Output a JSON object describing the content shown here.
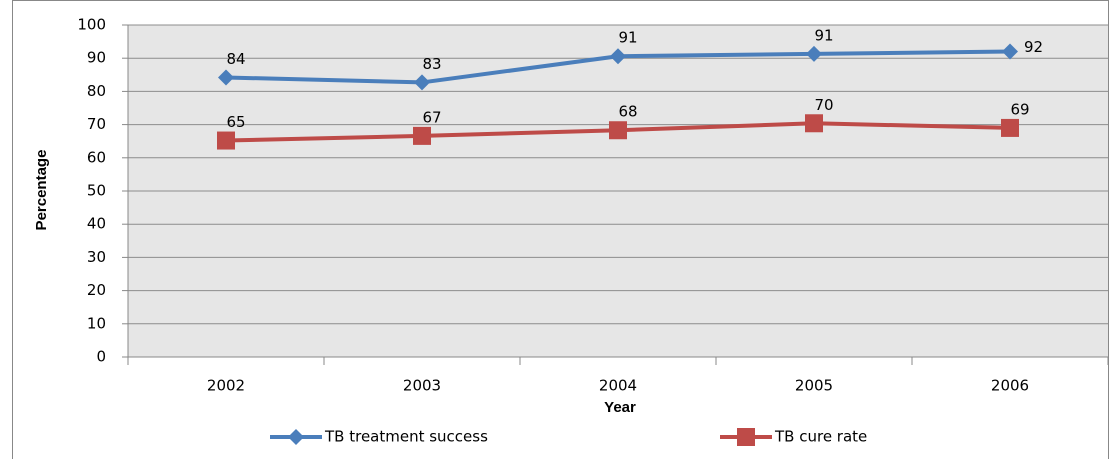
{
  "chart_data": {
    "type": "line",
    "x_label": "Year",
    "y_label": "Percentage",
    "categories": [
      "2002",
      "2003",
      "2004",
      "2005",
      "2006"
    ],
    "series": [
      {
        "name": "TB treatment success",
        "color": "#4a7ebb",
        "marker": "diamond",
        "values": [
          84.2,
          82.7,
          90.6,
          91.3,
          92
        ],
        "value_labels": [
          "84",
          "83",
          "91",
          "91",
          "92"
        ]
      },
      {
        "name": "TB cure rate",
        "color": "#be4b48",
        "marker": "square",
        "values": [
          65.2,
          66.6,
          68.3,
          70.4,
          69
        ],
        "value_labels": [
          "65",
          "67",
          "68",
          "70",
          "69"
        ]
      }
    ],
    "ylim": [
      0,
      100
    ],
    "yticks": [
      0,
      10,
      20,
      30,
      40,
      50,
      60,
      70,
      80,
      90,
      100
    ],
    "grid": true,
    "legend": "bottom"
  }
}
